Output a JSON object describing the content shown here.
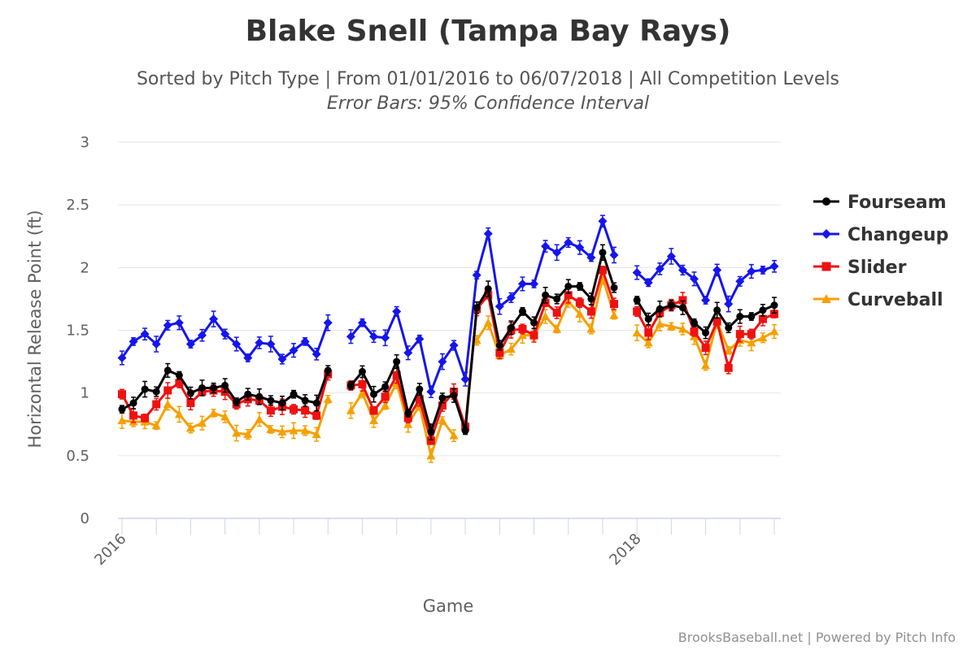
{
  "chart_data": {
    "type": "line",
    "title": "Blake Snell (Tampa Bay Rays)",
    "subtitle": "Sorted by Pitch Type | From 01/01/2016 to 06/07/2018 | All Competition Levels",
    "subtitle2": "Error Bars: 95% Confidence Interval",
    "xlabel": "Game",
    "ylabel": "Horizontal Release Point (ft)",
    "ylim": [
      0,
      3
    ],
    "yticks": [
      "0",
      "0.5",
      "1",
      "1.5",
      "2",
      "2.5",
      "3"
    ],
    "xticks": [
      {
        "label": "2016",
        "index": 0
      },
      {
        "label": "2018",
        "index": 45
      }
    ],
    "n_points": 58,
    "legend_position": "right",
    "grid": true,
    "credits": "BrooksBaseball.net | Powered by Pitch Info",
    "series": [
      {
        "name": "Fourseam",
        "color": "#000000",
        "marker": "circle",
        "values": [
          0.87,
          0.92,
          1.03,
          1.01,
          1.18,
          1.14,
          1.0,
          1.04,
          1.04,
          1.06,
          0.93,
          0.99,
          0.97,
          0.94,
          0.92,
          0.99,
          0.94,
          0.92,
          1.18,
          null,
          1.06,
          1.17,
          0.99,
          1.05,
          1.25,
          0.84,
          1.03,
          0.69,
          0.96,
          0.98,
          0.7,
          1.68,
          1.83,
          1.38,
          1.52,
          1.65,
          1.56,
          1.78,
          1.75,
          1.85,
          1.85,
          1.75,
          2.12,
          1.84,
          null,
          1.74,
          1.59,
          1.67,
          1.7,
          1.68,
          1.56,
          1.48,
          1.66,
          1.52,
          1.61,
          1.61,
          1.66,
          1.7
        ]
      },
      {
        "name": "Changeup",
        "color": "#1515ee",
        "marker": "diamond",
        "values": [
          1.28,
          1.41,
          1.47,
          1.39,
          1.54,
          1.56,
          1.39,
          1.46,
          1.59,
          1.47,
          1.39,
          1.28,
          1.4,
          1.39,
          1.27,
          1.34,
          1.41,
          1.31,
          1.56,
          null,
          1.45,
          1.56,
          1.45,
          1.44,
          1.65,
          1.32,
          1.43,
          1.01,
          1.25,
          1.38,
          1.11,
          1.94,
          2.27,
          1.69,
          1.76,
          1.87,
          1.87,
          2.17,
          2.12,
          2.2,
          2.16,
          2.08,
          2.37,
          2.1,
          null,
          1.96,
          1.88,
          1.99,
          2.09,
          1.98,
          1.91,
          1.74,
          1.98,
          1.71,
          1.89,
          1.97,
          1.98,
          2.01
        ]
      },
      {
        "name": "Slider",
        "color": "#ee1111",
        "marker": "square",
        "values": [
          0.99,
          0.82,
          0.8,
          0.91,
          1.02,
          1.08,
          0.92,
          1.01,
          1.02,
          1.01,
          0.91,
          0.95,
          0.94,
          0.86,
          0.89,
          0.87,
          0.86,
          0.82,
          1.15,
          null,
          1.06,
          1.07,
          0.86,
          0.97,
          1.14,
          0.8,
          0.95,
          0.62,
          0.9,
          1.01,
          0.73,
          1.67,
          1.78,
          1.32,
          1.5,
          1.51,
          1.46,
          1.72,
          1.64,
          1.78,
          1.72,
          1.65,
          1.98,
          1.71,
          null,
          1.65,
          1.48,
          1.64,
          1.7,
          1.74,
          1.49,
          1.36,
          1.57,
          1.2,
          1.47,
          1.47,
          1.59,
          1.63
        ]
      },
      {
        "name": "Curveball",
        "color": "#f5a000",
        "marker": "triangle",
        "values": [
          0.78,
          0.77,
          0.77,
          0.74,
          0.91,
          0.83,
          0.72,
          0.76,
          0.84,
          0.81,
          0.68,
          0.67,
          0.79,
          0.71,
          0.69,
          0.7,
          0.7,
          0.67,
          0.95,
          null,
          0.86,
          1.0,
          0.78,
          0.9,
          1.08,
          0.75,
          0.9,
          0.5,
          0.78,
          0.66,
          null,
          1.42,
          1.56,
          1.3,
          1.35,
          1.46,
          1.46,
          1.61,
          1.51,
          1.73,
          1.63,
          1.51,
          1.92,
          1.62,
          null,
          1.48,
          1.4,
          1.55,
          1.53,
          1.51,
          1.45,
          1.22,
          1.57,
          1.34,
          1.42,
          1.4,
          1.44,
          1.49
        ]
      }
    ]
  }
}
